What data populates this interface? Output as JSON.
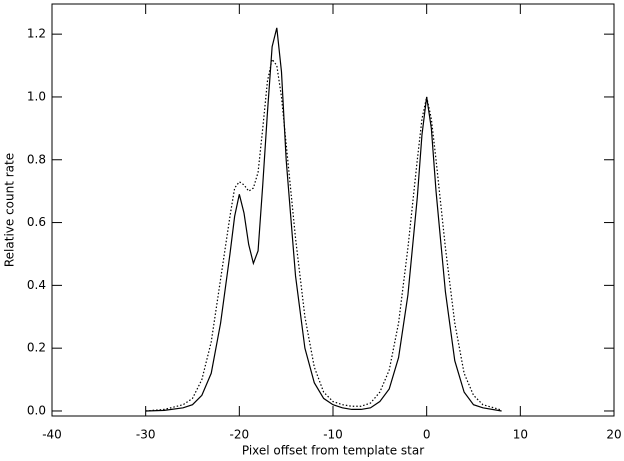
{
  "chart_data": {
    "type": "line",
    "x_label": "Pixel offset from template star",
    "y_label": "Relative count rate",
    "x": [
      -30,
      -28,
      -26,
      -25,
      -24,
      -23,
      -22,
      -21,
      -20.5,
      -20,
      -19.5,
      -19,
      -18.5,
      -18,
      -17.5,
      -17,
      -16.5,
      -16,
      -15.5,
      -15,
      -14,
      -13,
      -12,
      -11,
      -10,
      -9,
      -8,
      -7,
      -6,
      -5,
      -4,
      -3,
      -2,
      -1,
      -0.5,
      0,
      0.5,
      1,
      2,
      3,
      4,
      5,
      6,
      8
    ],
    "series": [
      {
        "color": "#000000",
        "dash": false,
        "values": [
          0,
          0.002,
          0.01,
          0.02,
          0.05,
          0.12,
          0.28,
          0.5,
          0.62,
          0.69,
          0.63,
          0.53,
          0.47,
          0.51,
          0.72,
          0.95,
          1.16,
          1.22,
          1.08,
          0.8,
          0.43,
          0.2,
          0.09,
          0.04,
          0.02,
          0.01,
          0.005,
          0.005,
          0.01,
          0.03,
          0.07,
          0.17,
          0.37,
          0.68,
          0.88,
          1.0,
          0.9,
          0.7,
          0.38,
          0.16,
          0.06,
          0.02,
          0.01,
          0
        ]
      },
      {
        "color": "#000000",
        "dash": true,
        "values": [
          0,
          0.005,
          0.02,
          0.04,
          0.1,
          0.22,
          0.42,
          0.62,
          0.71,
          0.73,
          0.72,
          0.7,
          0.71,
          0.76,
          0.9,
          1.05,
          1.12,
          1.1,
          1.0,
          0.85,
          0.55,
          0.3,
          0.14,
          0.06,
          0.03,
          0.02,
          0.015,
          0.015,
          0.025,
          0.06,
          0.13,
          0.28,
          0.52,
          0.8,
          0.93,
          1.0,
          0.93,
          0.8,
          0.52,
          0.28,
          0.12,
          0.05,
          0.02,
          0.003
        ]
      }
    ],
    "xlim": [
      -40,
      20
    ],
    "xticks": [
      -40,
      -30,
      -20,
      -10,
      0,
      10,
      20
    ],
    "ylim": [
      -0.016,
      1.296
    ],
    "yticks": [
      {
        "value": 0,
        "label": "0.0"
      },
      {
        "value": 0.2,
        "label": "0.2"
      },
      {
        "value": 0.4,
        "label": "0.4"
      },
      {
        "value": 0.6,
        "label": "0.6"
      },
      {
        "value": 0.8,
        "label": "0.8"
      },
      {
        "value": 1.0,
        "label": "1.0"
      },
      {
        "value": 1.2,
        "label": "1.2"
      }
    ],
    "grid": false
  }
}
